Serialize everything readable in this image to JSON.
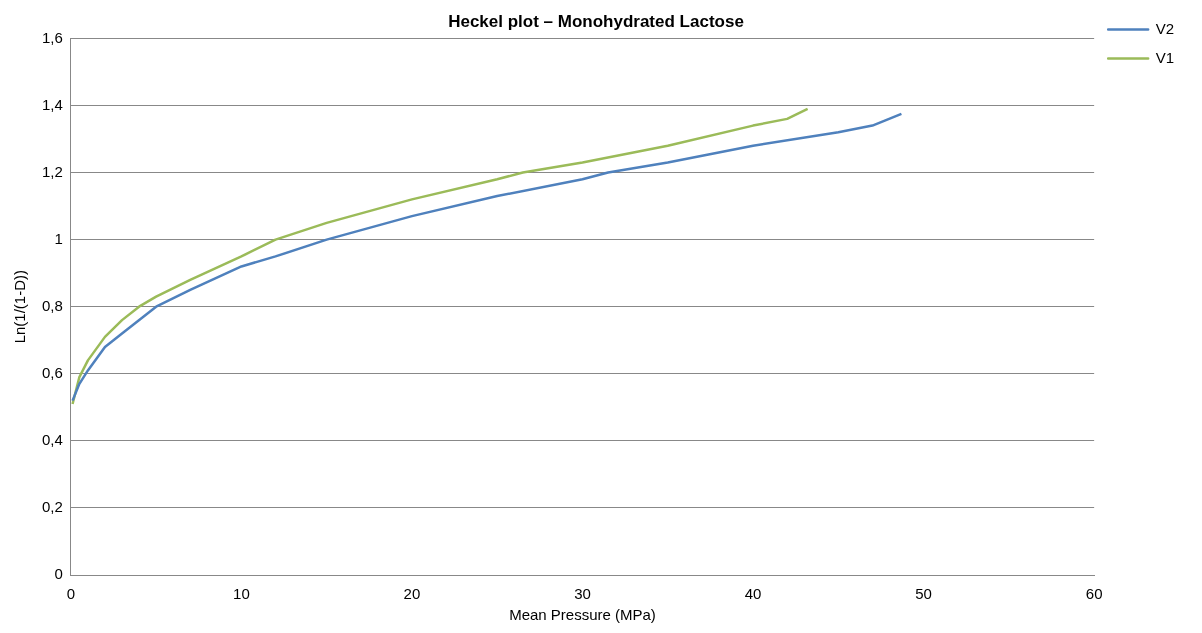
{
  "chart_data": {
    "type": "line",
    "title": "Heckel plot – Monohydrated Lactose",
    "xlabel": "Mean Pressure (MPa)",
    "ylabel": "Ln(1/(1-D))",
    "series": [
      {
        "name": "V2",
        "color": "#4f81bd",
        "x": [
          0.1,
          0.5,
          1,
          2,
          3,
          5,
          7,
          10,
          12,
          15,
          20,
          25,
          30,
          31.5,
          35,
          40,
          45,
          47,
          48.7
        ],
        "values": [
          0.52,
          0.57,
          0.61,
          0.68,
          0.72,
          0.8,
          0.85,
          0.92,
          0.95,
          1.0,
          1.07,
          1.13,
          1.18,
          1.2,
          1.23,
          1.28,
          1.32,
          1.34,
          1.375
        ]
      },
      {
        "name": "V1",
        "color": "#9bbb59",
        "x": [
          0.1,
          0.5,
          1,
          2,
          3,
          4,
          5,
          7,
          10,
          12,
          15,
          20,
          25,
          26.5,
          30,
          35,
          40,
          42,
          43.2
        ],
        "values": [
          0.51,
          0.59,
          0.64,
          0.71,
          0.76,
          0.8,
          0.83,
          0.88,
          0.95,
          1.0,
          1.05,
          1.12,
          1.18,
          1.2,
          1.23,
          1.28,
          1.34,
          1.36,
          1.39
        ]
      }
    ],
    "xlim": [
      0,
      60
    ],
    "xticks": [
      0,
      10,
      20,
      30,
      40,
      50,
      60
    ],
    "ylim": [
      0,
      1.6
    ],
    "yticks": [
      0,
      {
        "value": 0.2,
        "label": "0,2"
      },
      {
        "value": 0.4,
        "label": "0,4"
      },
      {
        "value": 0.6,
        "label": "0,6"
      },
      {
        "value": 0.8,
        "label": "0,8"
      },
      1,
      {
        "value": 1.2,
        "label": "1,2"
      },
      {
        "value": 1.4,
        "label": "1,4"
      },
      {
        "value": 1.6,
        "label": "1,6"
      }
    ],
    "grid": "y",
    "legend": "top right",
    "marker": "none",
    "line_style": "solid"
  }
}
